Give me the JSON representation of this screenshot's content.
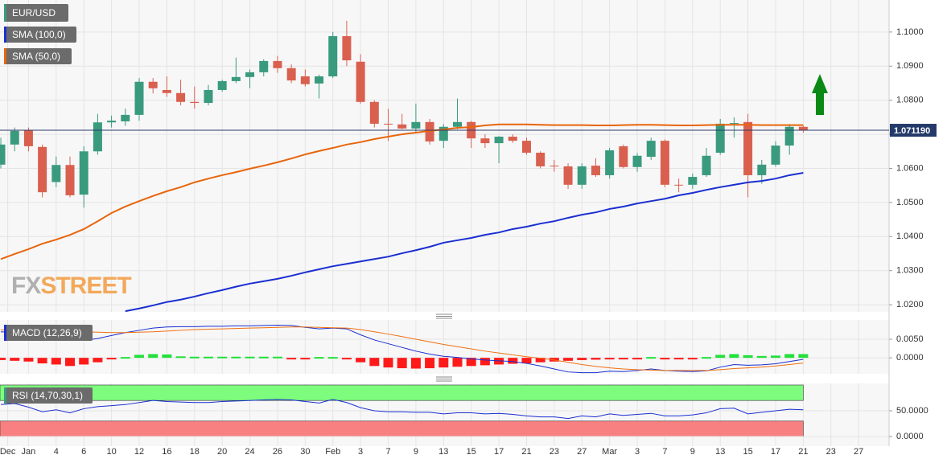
{
  "chart_data": [
    {
      "type": "candlestick",
      "title": "EUR/USD",
      "title_color": "#3a9a7e",
      "up_color": "#3a9a7e",
      "down_color": "#d9604e",
      "open": [
        1.0611,
        1.067,
        1.0712,
        1.0663,
        1.056,
        1.061,
        1.0523,
        1.065,
        1.0735,
        1.0738,
        1.0757,
        1.0854,
        1.083,
        1.0821,
        1.0795,
        1.0792,
        1.083,
        1.0856,
        1.0868,
        1.0882,
        1.0915,
        1.0894,
        1.087,
        1.0849,
        1.087,
        1.0988,
        1.0913,
        1.0795,
        1.0731,
        1.0729,
        1.0717,
        1.0736,
        1.0681,
        1.0722,
        1.0736,
        1.0688,
        1.0674,
        1.0693,
        1.0681,
        1.0646,
        1.0608,
        1.0606,
        1.0552,
        1.0608,
        1.058,
        1.0665,
        1.0604,
        1.0634,
        1.0681,
        1.0552,
        1.0552,
        1.058,
        1.0646,
        1.0731,
        1.0736,
        1.058,
        1.0611,
        1.0667,
        1.0722
      ],
      "high": [
        1.069,
        1.072,
        1.072,
        1.067,
        1.0635,
        1.0635,
        1.0665,
        1.076,
        1.0755,
        1.0775,
        1.0865,
        1.0865,
        1.087,
        1.086,
        1.084,
        1.0845,
        1.086,
        1.0925,
        1.089,
        1.092,
        1.093,
        1.0905,
        1.089,
        1.0875,
        1.1,
        1.1033,
        1.0935,
        1.08,
        1.0775,
        1.076,
        1.079,
        1.0745,
        1.073,
        1.0805,
        1.074,
        1.07,
        1.0695,
        1.07,
        1.069,
        1.065,
        1.0625,
        1.0615,
        1.0615,
        1.063,
        1.066,
        1.067,
        1.0645,
        1.069,
        1.0685,
        1.057,
        1.0585,
        1.066,
        1.0745,
        1.075,
        1.076,
        1.0625,
        1.068,
        1.073,
        1.0725
      ],
      "low": [
        1.06,
        1.065,
        1.065,
        1.0515,
        1.0545,
        1.0515,
        1.0485,
        1.064,
        1.072,
        1.0725,
        1.074,
        1.082,
        1.081,
        1.0785,
        1.0775,
        1.0785,
        1.0825,
        1.085,
        1.0835,
        1.087,
        1.088,
        1.085,
        1.084,
        1.0805,
        1.0865,
        1.09,
        1.079,
        1.072,
        1.068,
        1.0715,
        1.0705,
        1.067,
        1.066,
        1.0715,
        1.066,
        1.066,
        1.0615,
        1.0675,
        1.064,
        1.06,
        1.059,
        1.054,
        1.054,
        1.0575,
        1.057,
        1.06,
        1.059,
        1.0625,
        1.0545,
        1.053,
        1.054,
        1.0575,
        1.064,
        1.069,
        1.0515,
        1.0555,
        1.0605,
        1.064,
        1.0705
      ],
      "close": [
        1.067,
        1.071,
        1.0665,
        1.053,
        1.061,
        1.0521,
        1.065,
        1.0735,
        1.074,
        1.0757,
        1.0854,
        1.0835,
        1.0821,
        1.0795,
        1.0792,
        1.083,
        1.0856,
        1.0868,
        1.0882,
        1.0915,
        1.0894,
        1.0858,
        1.0847,
        1.087,
        1.0988,
        1.0917,
        1.0795,
        1.0731,
        1.0729,
        1.0717,
        1.0736,
        1.0679,
        1.0722,
        1.0736,
        1.0688,
        1.0674,
        1.0693,
        1.0681,
        1.0646,
        1.0606,
        1.0606,
        1.0552,
        1.0606,
        1.058,
        1.0653,
        1.0604,
        1.0637,
        1.0681,
        1.0552,
        1.055,
        1.0575,
        1.0637,
        1.0731,
        1.0733,
        1.058,
        1.0611,
        1.0667,
        1.0722,
        1.0712
      ],
      "overlays": [
        {
          "name": "SMA (100,0)",
          "color": "#1a2fd0",
          "values": [
            null,
            null,
            null,
            null,
            null,
            null,
            null,
            null,
            null,
            1.0181,
            1.0189,
            1.0198,
            1.0208,
            1.0215,
            1.0224,
            1.0234,
            1.0243,
            1.0253,
            1.0262,
            1.0269,
            1.0276,
            1.0285,
            1.0295,
            1.0304,
            1.0313,
            1.032,
            1.0327,
            1.0334,
            1.0341,
            1.0351,
            1.036,
            1.037,
            1.0382,
            1.0389,
            1.0396,
            1.0405,
            1.0412,
            1.0422,
            1.0429,
            1.0438,
            1.0445,
            1.0455,
            1.0464,
            1.0471,
            1.0481,
            1.0488,
            1.0497,
            1.0504,
            1.0511,
            1.0521,
            1.0528,
            1.0537,
            1.0545,
            1.0552,
            1.0559,
            1.0563,
            1.057,
            1.058,
            1.0587
          ]
        },
        {
          "name": "SMA (50,0)",
          "color": "#e8650a",
          "values": [
            1.0334,
            1.0349,
            1.0363,
            1.0379,
            1.0391,
            1.0405,
            1.0422,
            1.0445,
            1.0469,
            1.0488,
            1.0504,
            1.0519,
            1.0533,
            1.0545,
            1.0559,
            1.057,
            1.058,
            1.0589,
            1.0599,
            1.0608,
            1.0618,
            1.0629,
            1.0641,
            1.0651,
            1.066,
            1.067,
            1.0677,
            1.0686,
            1.0693,
            1.07,
            1.0705,
            1.071,
            1.0714,
            1.0719,
            1.0721,
            1.0726,
            1.0729,
            1.0729,
            1.0729,
            1.0728,
            1.0727,
            1.0727,
            1.0727,
            1.0726,
            1.0726,
            1.0727,
            1.0728,
            1.0728,
            1.0727,
            1.0726,
            1.0726,
            1.0727,
            1.0728,
            1.0728,
            1.0728,
            1.0727,
            1.0727,
            1.0727,
            1.0727
          ]
        }
      ],
      "last_price": {
        "value": 1.07119,
        "label": "1.071190"
      },
      "ylim": [
        1.0179,
        1.1094
      ],
      "yticks": [
        {
          "value": 1.1,
          "label": "1.1000"
        },
        {
          "value": 1.09,
          "label": "1.0900"
        },
        {
          "value": 1.08,
          "label": "1.0800"
        },
        {
          "value": 1.07,
          "label": "1.0700"
        },
        {
          "value": 1.06,
          "label": "1.0600"
        },
        {
          "value": 1.05,
          "label": "1.0500"
        },
        {
          "value": 1.04,
          "label": "1.0400"
        },
        {
          "value": 1.03,
          "label": "1.0300"
        },
        {
          "value": 1.02,
          "label": "1.0200"
        }
      ],
      "grid": true,
      "watermark": [
        "FX",
        "STREET"
      ]
    },
    {
      "type": "macd",
      "title": "MACD (12,26,9)",
      "pos_color": "#22e03a",
      "neg_color": "#ff1a1a",
      "histogram": [
        -0.0006,
        -0.0008,
        -0.001,
        -0.0015,
        -0.0018,
        -0.0022,
        -0.0018,
        -0.0012,
        -0.0004,
        0,
        0.0008,
        0.001,
        0.0009,
        0.0004,
        0.0003,
        0.0003,
        0.0003,
        0.0003,
        0.0003,
        0.0003,
        0.0003,
        -0.0004,
        -0.0004,
        0,
        0,
        -0.0002,
        -0.0012,
        -0.0022,
        -0.0026,
        -0.0028,
        -0.0029,
        -0.0028,
        -0.0026,
        -0.0024,
        -0.0022,
        -0.002,
        -0.0018,
        -0.0016,
        -0.0015,
        -0.0012,
        -0.001,
        -0.0008,
        -0.0006,
        -0.0005,
        -0.0004,
        -0.0002,
        -0.0002,
        0,
        -0.0003,
        -0.0003,
        -0.0003,
        0,
        0.0008,
        0.001,
        0.0007,
        0.0005,
        0.0006,
        0.001,
        0.001
      ],
      "series": [
        {
          "color": "#1a2fd0",
          "values": [
            0.007,
            0.0068,
            0.0064,
            0.0058,
            0.0053,
            0.0048,
            0.0047,
            0.0052,
            0.006,
            0.0068,
            0.0074,
            0.008,
            0.0083,
            0.0084,
            0.0084,
            0.0085,
            0.0085,
            0.0086,
            0.0086,
            0.0087,
            0.0088,
            0.0087,
            0.0082,
            0.0078,
            0.008,
            0.0078,
            0.0062,
            0.0048,
            0.0038,
            0.0028,
            0.0018,
            0.001,
            0.0004,
            0.0001,
            -0.0003,
            -0.0006,
            -0.0008,
            -0.001,
            -0.0015,
            -0.0022,
            -0.003,
            -0.0038,
            -0.004,
            -0.004,
            -0.0036,
            -0.0037,
            -0.0034,
            -0.003,
            -0.0034,
            -0.0036,
            -0.0037,
            -0.0035,
            -0.0025,
            -0.0018,
            -0.002,
            -0.0019,
            -0.0016,
            -0.001,
            -0.0004
          ]
        },
        {
          "color": "#f07010",
          "values": [
            0.0075,
            0.0076,
            0.0076,
            0.0075,
            0.0074,
            0.0072,
            0.007,
            0.0069,
            0.0068,
            0.0068,
            0.0069,
            0.007,
            0.0072,
            0.0074,
            0.0076,
            0.0077,
            0.0078,
            0.0079,
            0.008,
            0.0081,
            0.0082,
            0.0083,
            0.0083,
            0.0082,
            0.0081,
            0.008,
            0.0076,
            0.007,
            0.0064,
            0.0057,
            0.005,
            0.0043,
            0.0036,
            0.003,
            0.0024,
            0.0018,
            0.0013,
            0.0008,
            0.0003,
            -0.0001,
            -0.0006,
            -0.0012,
            -0.0018,
            -0.0023,
            -0.0027,
            -0.003,
            -0.0032,
            -0.0033,
            -0.0034,
            -0.0034,
            -0.0034,
            -0.0034,
            -0.0032,
            -0.0029,
            -0.0027,
            -0.0025,
            -0.0022,
            -0.0018,
            -0.0014
          ]
        }
      ],
      "ylim": [
        -0.0043,
        0.0102
      ],
      "yticks": [
        {
          "value": 0.005,
          "label": "0.0050"
        },
        {
          "value": 0,
          "label": "0.0000"
        }
      ]
    },
    {
      "type": "rsi",
      "title": "RSI (14,70,30,1)",
      "color": "#1a2fd0",
      "bands": [
        {
          "range": [
            70,
            100
          ],
          "color": "#7dfc7d"
        },
        {
          "range": [
            0,
            30
          ],
          "color": "#f88080"
        }
      ],
      "values": [
        62,
        64,
        57,
        48,
        52,
        46,
        54,
        58,
        60,
        62,
        66,
        70,
        68,
        67,
        66,
        66,
        68,
        69,
        70,
        71,
        72,
        71,
        68,
        65,
        72,
        66,
        56,
        50,
        48,
        48,
        47,
        47,
        44,
        46,
        46,
        44,
        45,
        43,
        40,
        38,
        38,
        35,
        40,
        38,
        44,
        41,
        43,
        45,
        40,
        40,
        42,
        46,
        54,
        55,
        44,
        47,
        50,
        53,
        52
      ],
      "ylim": [
        -18.75,
        103.1
      ],
      "yticks": [
        {
          "value": 50,
          "label": "50.0000"
        },
        {
          "value": 0,
          "label": "0.0000"
        }
      ],
      "xlim": [
        -0.06,
        64.2
      ],
      "xticks": [
        {
          "value": 0.5,
          "label": "Dec"
        },
        {
          "value": 2,
          "label": "Jan"
        },
        {
          "value": 4,
          "label": "4"
        },
        {
          "value": 6,
          "label": "6"
        },
        {
          "value": 8,
          "label": "10"
        },
        {
          "value": 10,
          "label": "12"
        },
        {
          "value": 12,
          "label": "16"
        },
        {
          "value": 14,
          "label": "18"
        },
        {
          "value": 16,
          "label": "20"
        },
        {
          "value": 18,
          "label": "24"
        },
        {
          "value": 20,
          "label": "26"
        },
        {
          "value": 22,
          "label": "30"
        },
        {
          "value": 24,
          "label": "Feb"
        },
        {
          "value": 26,
          "label": "3"
        },
        {
          "value": 28,
          "label": "7"
        },
        {
          "value": 30,
          "label": "9"
        },
        {
          "value": 32,
          "label": "13"
        },
        {
          "value": 34,
          "label": "15"
        },
        {
          "value": 36,
          "label": "17"
        },
        {
          "value": 38,
          "label": "21"
        },
        {
          "value": 40,
          "label": "23"
        },
        {
          "value": 42,
          "label": "27"
        },
        {
          "value": 44,
          "label": "Mar"
        },
        {
          "value": 46,
          "label": "3"
        },
        {
          "value": 48,
          "label": "7"
        },
        {
          "value": 50,
          "label": "9"
        },
        {
          "value": 52,
          "label": "13"
        },
        {
          "value": 54,
          "label": "15"
        },
        {
          "value": 56,
          "label": "17"
        },
        {
          "value": 58,
          "label": "21"
        },
        {
          "value": 60,
          "label": "23"
        },
        {
          "value": 62,
          "label": "27"
        }
      ]
    }
  ]
}
